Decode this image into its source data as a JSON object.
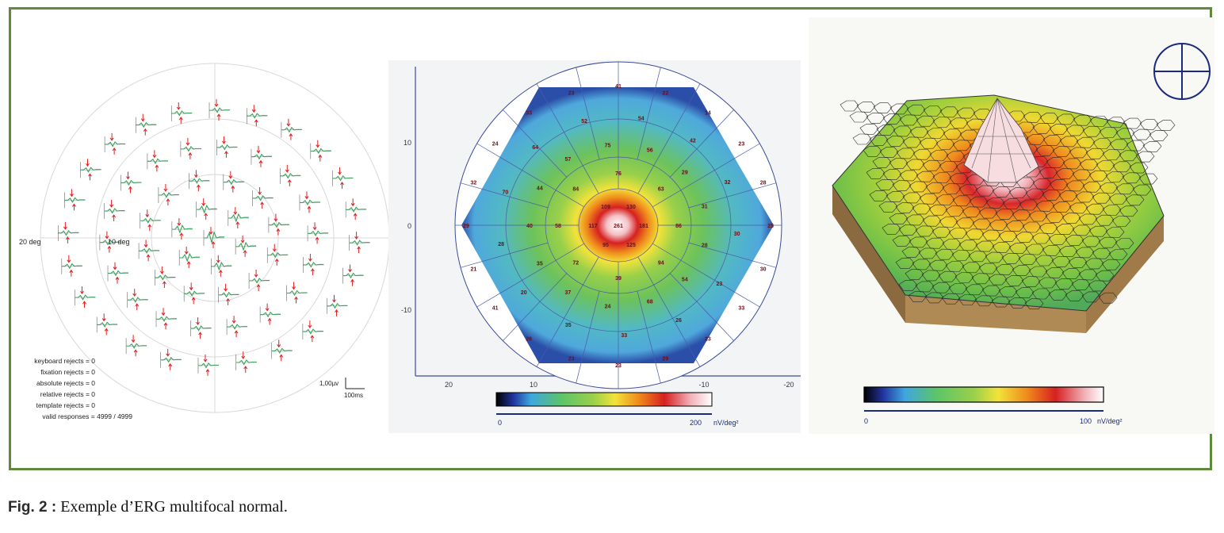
{
  "figure": {
    "caption_label": "Fig. 2 :",
    "caption_text": " Exemple d’ERG multifocal normal.",
    "frame_color": "#5f8a3c"
  },
  "traces_panel": {
    "ring_labels": [
      "20 deg",
      "10 deg"
    ],
    "scale_label": "1,00µv",
    "time_label": "100ms",
    "stats": [
      "keyboard rejects = 0",
      "fixation rejects = 0",
      "absolute rejects = 0",
      "relative rejects = 0",
      "template rejects = 0",
      "valid responses = 4999 / 4999"
    ],
    "trace_color": "#3aa05a",
    "marker_color": "#e02020"
  },
  "topo_map": {
    "x_ticks": [
      "20",
      "10",
      "0",
      "-10",
      "-20"
    ],
    "y_ticks": [
      "10",
      "0",
      "-10"
    ],
    "colorbar_min": "0",
    "colorbar_max": "200",
    "colorbar_unit": "nV/deg²",
    "center_value": "261",
    "ring1_values": [
      "117",
      "109",
      "130",
      "181",
      "125",
      "95"
    ],
    "ring2_values": [
      "58",
      "84",
      "76",
      "63",
      "86",
      "94",
      "39",
      "72"
    ],
    "ring3_values": [
      "40",
      "44",
      "57",
      "75",
      "56",
      "29",
      "31",
      "28",
      "54",
      "68",
      "24",
      "37",
      "35"
    ],
    "ring4_values": [
      "70",
      "64",
      "52",
      "54",
      "42",
      "32",
      "30",
      "23",
      "26",
      "33",
      "35",
      "20",
      "28"
    ],
    "outer_values": [
      "24",
      "33",
      "23",
      "41",
      "22",
      "14",
      "23",
      "28",
      "25",
      "30",
      "33",
      "23",
      "29",
      "23",
      "23",
      "26",
      "41",
      "21",
      "29",
      "32"
    ]
  },
  "surface_3d": {
    "colorbar_min": "0",
    "colorbar_max": "100",
    "colorbar_unit": "nV/deg²"
  }
}
